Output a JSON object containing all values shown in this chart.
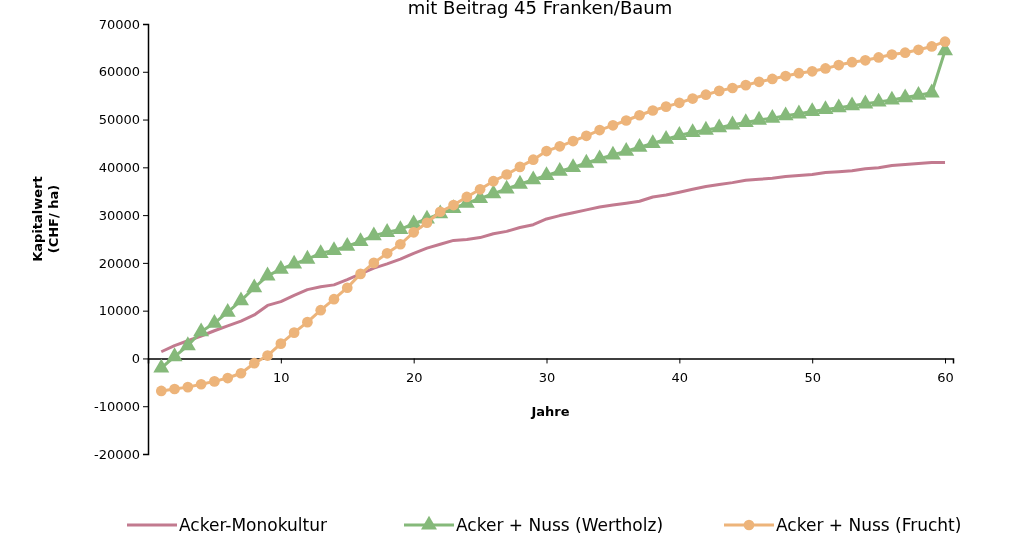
{
  "chart_data": {
    "type": "line",
    "title": "mit Beitrag 45 Franken/Baum",
    "xlabel": "Jahre",
    "ylabel": "Kapitalwert\n(CHF/ ha)",
    "x": [
      1,
      2,
      3,
      4,
      5,
      6,
      7,
      8,
      9,
      10,
      11,
      12,
      13,
      14,
      15,
      16,
      17,
      18,
      19,
      20,
      21,
      22,
      23,
      24,
      25,
      26,
      27,
      28,
      29,
      30,
      31,
      32,
      33,
      34,
      35,
      36,
      37,
      38,
      39,
      40,
      41,
      42,
      43,
      44,
      45,
      46,
      47,
      48,
      49,
      50,
      51,
      52,
      53,
      54,
      55,
      56,
      57,
      58,
      59,
      60
    ],
    "xlim": [
      0,
      60.6
    ],
    "xticks": [
      10,
      20,
      30,
      40,
      50,
      60
    ],
    "ylim": [
      -20000,
      70000
    ],
    "yticks": [
      -20000,
      -10000,
      0,
      10000,
      20000,
      30000,
      40000,
      50000,
      60000,
      70000
    ],
    "grid": false,
    "legend": "bottom",
    "series": [
      {
        "name": "Acker-Monokultur",
        "color": "#c27a8f",
        "marker": "none",
        "values": [
          1400,
          2700,
          3700,
          4700,
          5800,
          6800,
          7800,
          9100,
          11100,
          11900,
          13200,
          14400,
          15000,
          15400,
          16500,
          17700,
          18900,
          19800,
          20800,
          22000,
          23100,
          23900,
          24700,
          24900,
          25300,
          26100,
          26600,
          27400,
          28000,
          29200,
          29900,
          30500,
          31100,
          31700,
          32100,
          32500,
          32900,
          33800,
          34200,
          34800,
          35400,
          36000,
          36400,
          36800,
          37300,
          37500,
          37700,
          38100,
          38300,
          38500,
          38900,
          39100,
          39300,
          39700,
          39900,
          40400,
          40600,
          40800,
          41000,
          41000
        ]
      },
      {
        "name": "Acker + Nuss (Wertholz)",
        "color": "#85b97a",
        "marker": "triangle",
        "values": [
          -2000,
          400,
          2700,
          5600,
          7400,
          9700,
          12100,
          14800,
          17300,
          18700,
          19800,
          20800,
          22000,
          22600,
          23500,
          24500,
          25700,
          26400,
          27000,
          28200,
          29200,
          30300,
          31400,
          32500,
          33500,
          34500,
          35500,
          36500,
          37400,
          38300,
          39200,
          40000,
          40900,
          41800,
          42600,
          43400,
          44200,
          45000,
          45900,
          46700,
          47300,
          47800,
          48300,
          48900,
          49400,
          49900,
          50300,
          50800,
          51200,
          51700,
          52100,
          52500,
          52900,
          53300,
          53700,
          54100,
          54600,
          55100,
          55600,
          64400
        ]
      },
      {
        "name": "Acker + Nuss (Frucht)",
        "color": "#edb47a",
        "marker": "circle",
        "values": [
          -6800,
          -6400,
          -6000,
          -5400,
          -4800,
          -4100,
          -3100,
          -1000,
          600,
          3100,
          5400,
          7600,
          10100,
          12400,
          14800,
          17700,
          20000,
          22000,
          23900,
          26400,
          28400,
          30700,
          32100,
          33800,
          35400,
          37100,
          38500,
          40100,
          41600,
          43400,
          44400,
          45500,
          46600,
          47800,
          48800,
          49800,
          50900,
          51900,
          52700,
          53500,
          54400,
          55200,
          56000,
          56600,
          57200,
          57900,
          58500,
          59100,
          59700,
          60100,
          60700,
          61400,
          62000,
          62400,
          63000,
          63600,
          64000,
          64600,
          65300,
          66300
        ]
      }
    ]
  }
}
